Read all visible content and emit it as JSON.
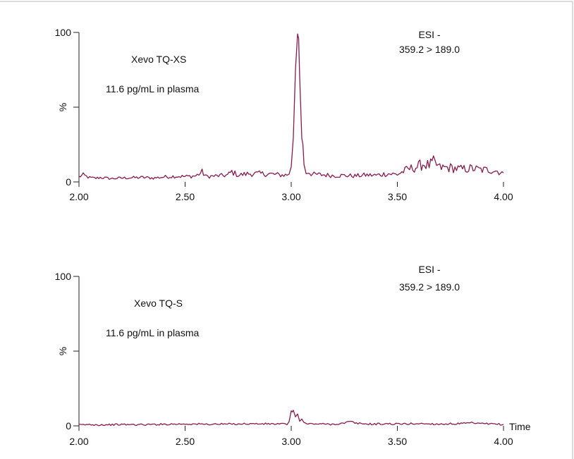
{
  "colors": {
    "trace": "#8b1a4e",
    "axis": "#222222",
    "frame": "#b8b8b8",
    "text": "#111111"
  },
  "chart_data": [
    {
      "type": "line",
      "instrument_label": "Xevo TQ-XS",
      "sample_label": "11.6 pg/mL in plasma",
      "mode_label": "ESI -",
      "transition_label": "359.2 > 189.0",
      "ylabel": "%",
      "xlabel": "",
      "xlim": [
        2.0,
        4.0
      ],
      "ylim": [
        0,
        100
      ],
      "xticks": [
        "2.00",
        "2.50",
        "3.00",
        "3.50",
        "4.00"
      ],
      "yticks": [
        "0",
        "100"
      ],
      "series": [
        {
          "x": [
            2.0,
            2.02,
            2.05,
            2.08,
            2.1,
            2.15,
            2.2,
            2.25,
            2.3,
            2.35,
            2.4,
            2.45,
            2.5,
            2.55,
            2.58,
            2.6,
            2.65,
            2.7,
            2.72,
            2.75,
            2.8,
            2.85,
            2.9,
            2.95,
            2.98,
            2.99,
            3.0,
            3.01,
            3.02,
            3.03,
            3.035,
            3.04,
            3.05,
            3.055,
            3.06,
            3.07,
            3.08,
            3.1,
            3.15,
            3.2,
            3.25,
            3.3,
            3.35,
            3.4,
            3.45,
            3.5,
            3.55,
            3.58,
            3.6,
            3.62,
            3.65,
            3.67,
            3.7,
            3.75,
            3.8,
            3.85,
            3.9,
            3.95,
            4.0
          ],
          "y": [
            3.5,
            4.5,
            2.8,
            2.5,
            3,
            2.2,
            2.6,
            2.8,
            3,
            2.6,
            3.3,
            3.8,
            3.6,
            4,
            6.5,
            3.6,
            4,
            4.5,
            6.8,
            4.5,
            5.5,
            5.5,
            5.3,
            4.6,
            4.6,
            6,
            9,
            30,
            75,
            99,
            96,
            70,
            29,
            25,
            13,
            6,
            7,
            5,
            4.8,
            4.2,
            4.3,
            4,
            4.6,
            4.4,
            5.5,
            5,
            8.5,
            9.5,
            10.5,
            12,
            11,
            13,
            9.5,
            9.5,
            8.5,
            9,
            8,
            8,
            6
          ]
        }
      ]
    },
    {
      "type": "line",
      "instrument_label": "Xevo TQ-S",
      "sample_label": "11.6 pg/mL in plasma",
      "mode_label": "ESI -",
      "transition_label": "359.2 > 189.0",
      "ylabel": "%",
      "xlabel": "Time",
      "xlim": [
        2.0,
        4.0
      ],
      "ylim": [
        0,
        100
      ],
      "xticks": [
        "2.00",
        "2.50",
        "3.00",
        "3.50",
        "4.00"
      ],
      "yticks": [
        "0",
        "100"
      ],
      "series": [
        {
          "x": [
            2.0,
            2.05,
            2.1,
            2.2,
            2.3,
            2.4,
            2.5,
            2.6,
            2.7,
            2.8,
            2.9,
            2.98,
            2.99,
            3.0,
            3.005,
            3.01,
            3.02,
            3.03,
            3.04,
            3.05,
            3.06,
            3.08,
            3.1,
            3.15,
            3.2,
            3.25,
            3.28,
            3.3,
            3.35,
            3.4,
            3.45,
            3.5,
            3.6,
            3.7,
            3.8,
            3.85,
            3.9,
            3.95,
            4.0
          ],
          "y": [
            0.6,
            0.9,
            0.7,
            0.9,
            0.8,
            1.1,
            1.3,
            1.1,
            1.2,
            1.4,
            1.3,
            1.2,
            2.5,
            7.5,
            11.5,
            10.5,
            9,
            7,
            3.5,
            4,
            2,
            1.2,
            1.4,
            1.2,
            1.1,
            1.8,
            2.8,
            1.8,
            1.3,
            1.2,
            1.4,
            1.2,
            1.5,
            1.2,
            1.5,
            1.9,
            1.4,
            1.2,
            1.0
          ]
        }
      ]
    }
  ]
}
